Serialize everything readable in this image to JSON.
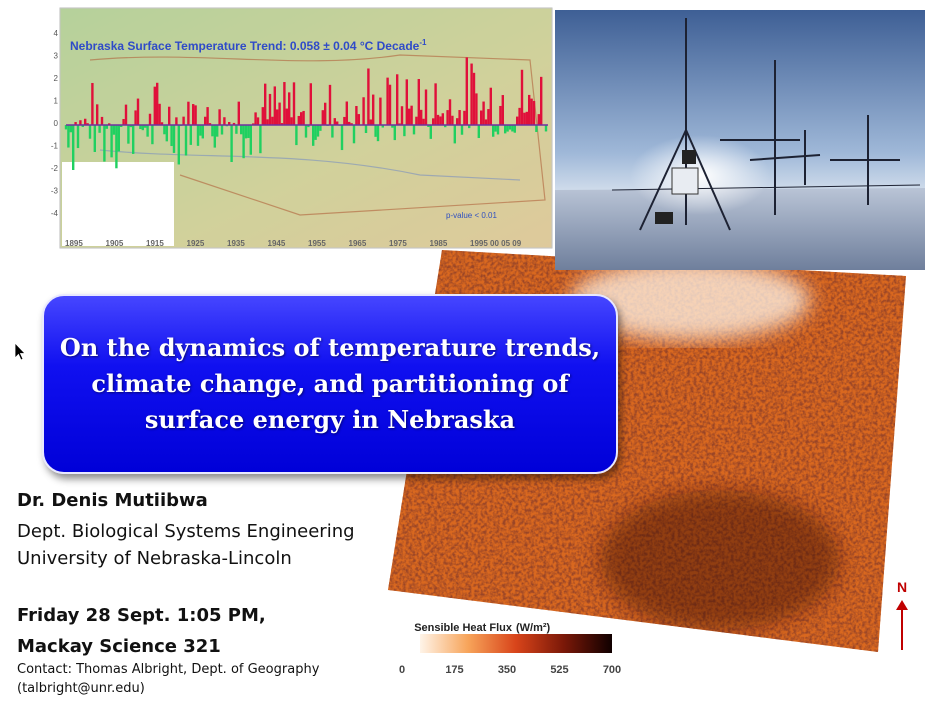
{
  "temperature_chart": {
    "title": "Nebraska Surface Temperature Trend: 0.058 ± 0.04 °C Decade",
    "title_superscript": "-1",
    "y_labels": [
      "4",
      "3",
      "2",
      "1",
      "0",
      "-1",
      "-2",
      "-3",
      "-4"
    ],
    "x_labels": [
      "1895",
      "1905",
      "1915",
      "1925",
      "1935",
      "1945",
      "1955",
      "1965",
      "1975",
      "1985",
      "1995 00 05 09"
    ],
    "p_value": "p-value < 0.01"
  },
  "title_lines": [
    "On the dynamics of temperature trends,",
    "climate change, and partitioning of",
    "surface energy in Nebraska"
  ],
  "speaker": {
    "name": "Dr. Denis Mutiibwa",
    "department": "Dept. Biological Systems Engineering",
    "university": "University of Nebraska-Lincoln"
  },
  "event": {
    "date": "Friday 28 Sept. 1:05 PM,",
    "venue": "Mackay Science 321"
  },
  "contact": {
    "line": "Contact: Thomas Albright, Dept. of Geography",
    "email": "(talbright@unr.edu)"
  },
  "heat_map_legend": {
    "title": "Sensible Heat Flux",
    "unit": "(W/m²)",
    "ticks": [
      "0",
      "175",
      "350",
      "525",
      "700"
    ]
  },
  "north_label": "N"
}
